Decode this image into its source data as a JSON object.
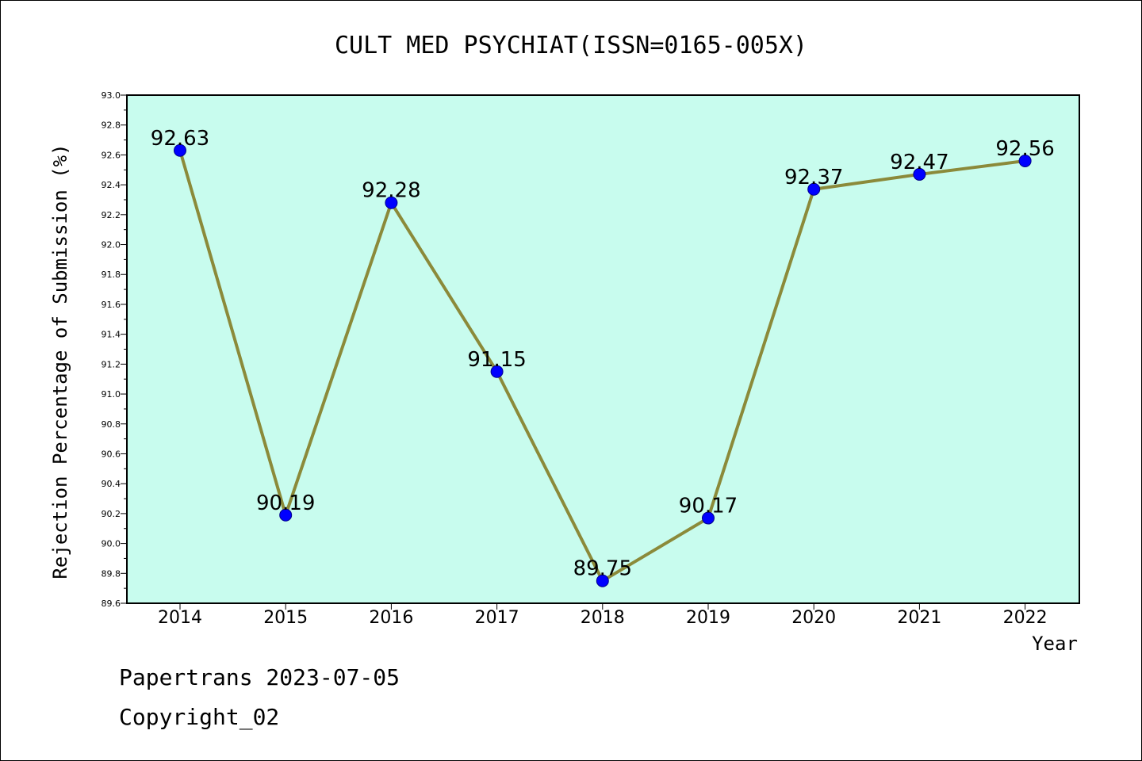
{
  "chart_data": {
    "type": "line",
    "title": "CULT MED PSYCHIAT(ISSN=0165-005X)",
    "xlabel": "Year",
    "ylabel": "Rejection Percentage of Submission (%)",
    "categories": [
      "2014",
      "2015",
      "2016",
      "2017",
      "2018",
      "2019",
      "2020",
      "2021",
      "2022"
    ],
    "series": [
      {
        "values": [
          92.63,
          90.19,
          92.28,
          91.15,
          89.75,
          90.17,
          92.37,
          92.47,
          92.56
        ],
        "labels": [
          "92.63",
          "90.19",
          "92.28",
          "91.15",
          "89.75",
          "90.17",
          "92.37",
          "92.47",
          "92.56"
        ]
      }
    ],
    "ylim": [
      89.6,
      93.0
    ],
    "yticks": [
      "89.6",
      "89.8",
      "90.0",
      "90.2",
      "90.4",
      "90.6",
      "90.8",
      "91.0",
      "91.2",
      "91.4",
      "91.6",
      "91.8",
      "92.0",
      "92.2",
      "92.4",
      "92.6",
      "92.8",
      "93.0"
    ],
    "grid": false,
    "colors": {
      "plot_background": "#c8fcee",
      "line": "#8b8a3a",
      "marker": "#0000ff"
    }
  },
  "footer": {
    "line1": "Papertrans 2023-07-05",
    "line2": "Copyright_02"
  }
}
